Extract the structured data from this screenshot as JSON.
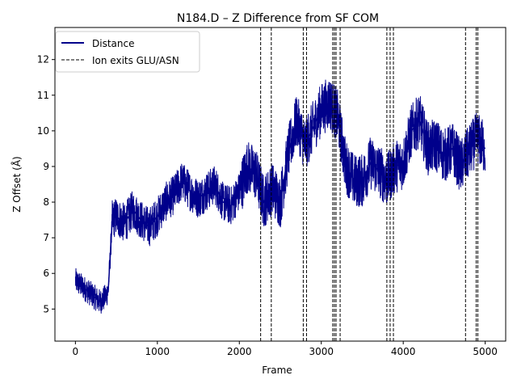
{
  "chart_data": {
    "type": "line",
    "title": "N184.D – Z Difference from SF COM",
    "xlabel": "Frame",
    "ylabel": "Z Offset (Å)",
    "xlim": [
      -250,
      5250
    ],
    "ylim": [
      4.1,
      12.9
    ],
    "xticks": [
      0,
      1000,
      2000,
      3000,
      4000,
      5000
    ],
    "yticks": [
      5,
      6,
      7,
      8,
      9,
      10,
      11,
      12
    ],
    "grid": false,
    "legend_position": "top-left",
    "series": [
      {
        "name": "Distance",
        "color": "#00008b",
        "style": "solid",
        "x": [
          0,
          50,
          100,
          150,
          200,
          250,
          300,
          350,
          400,
          450,
          500,
          600,
          700,
          800,
          900,
          1000,
          1100,
          1200,
          1300,
          1400,
          1500,
          1600,
          1700,
          1800,
          1900,
          2000,
          2100,
          2200,
          2300,
          2400,
          2500,
          2600,
          2700,
          2800,
          2900,
          3000,
          3100,
          3200,
          3300,
          3400,
          3500,
          3600,
          3700,
          3800,
          3900,
          4000,
          4100,
          4200,
          4300,
          4400,
          4500,
          4600,
          4700,
          4800,
          4900,
          5000
        ],
        "y": [
          5.8,
          5.7,
          5.6,
          5.5,
          5.4,
          5.3,
          5.2,
          5.3,
          5.5,
          7.5,
          7.6,
          7.4,
          7.8,
          7.5,
          7.3,
          7.6,
          8.0,
          8.2,
          8.6,
          8.3,
          8.1,
          8.3,
          8.5,
          8.0,
          7.9,
          8.3,
          9.0,
          8.8,
          8.0,
          8.4,
          8.0,
          9.4,
          10.3,
          9.6,
          10.1,
          10.6,
          10.8,
          10.4,
          9.0,
          8.6,
          8.6,
          9.1,
          8.9,
          8.6,
          9.0,
          9.1,
          10.0,
          10.3,
          9.5,
          9.6,
          9.3,
          9.5,
          9.0,
          9.4,
          9.8,
          9.5
        ]
      }
    ],
    "events": {
      "name": "Ion exits GLU/ASN",
      "color": "#000000",
      "style": "dashed",
      "x": [
        2260,
        2390,
        2780,
        2820,
        3140,
        3160,
        3180,
        3230,
        3800,
        3840,
        3880,
        4760,
        4890,
        4910
      ]
    }
  }
}
